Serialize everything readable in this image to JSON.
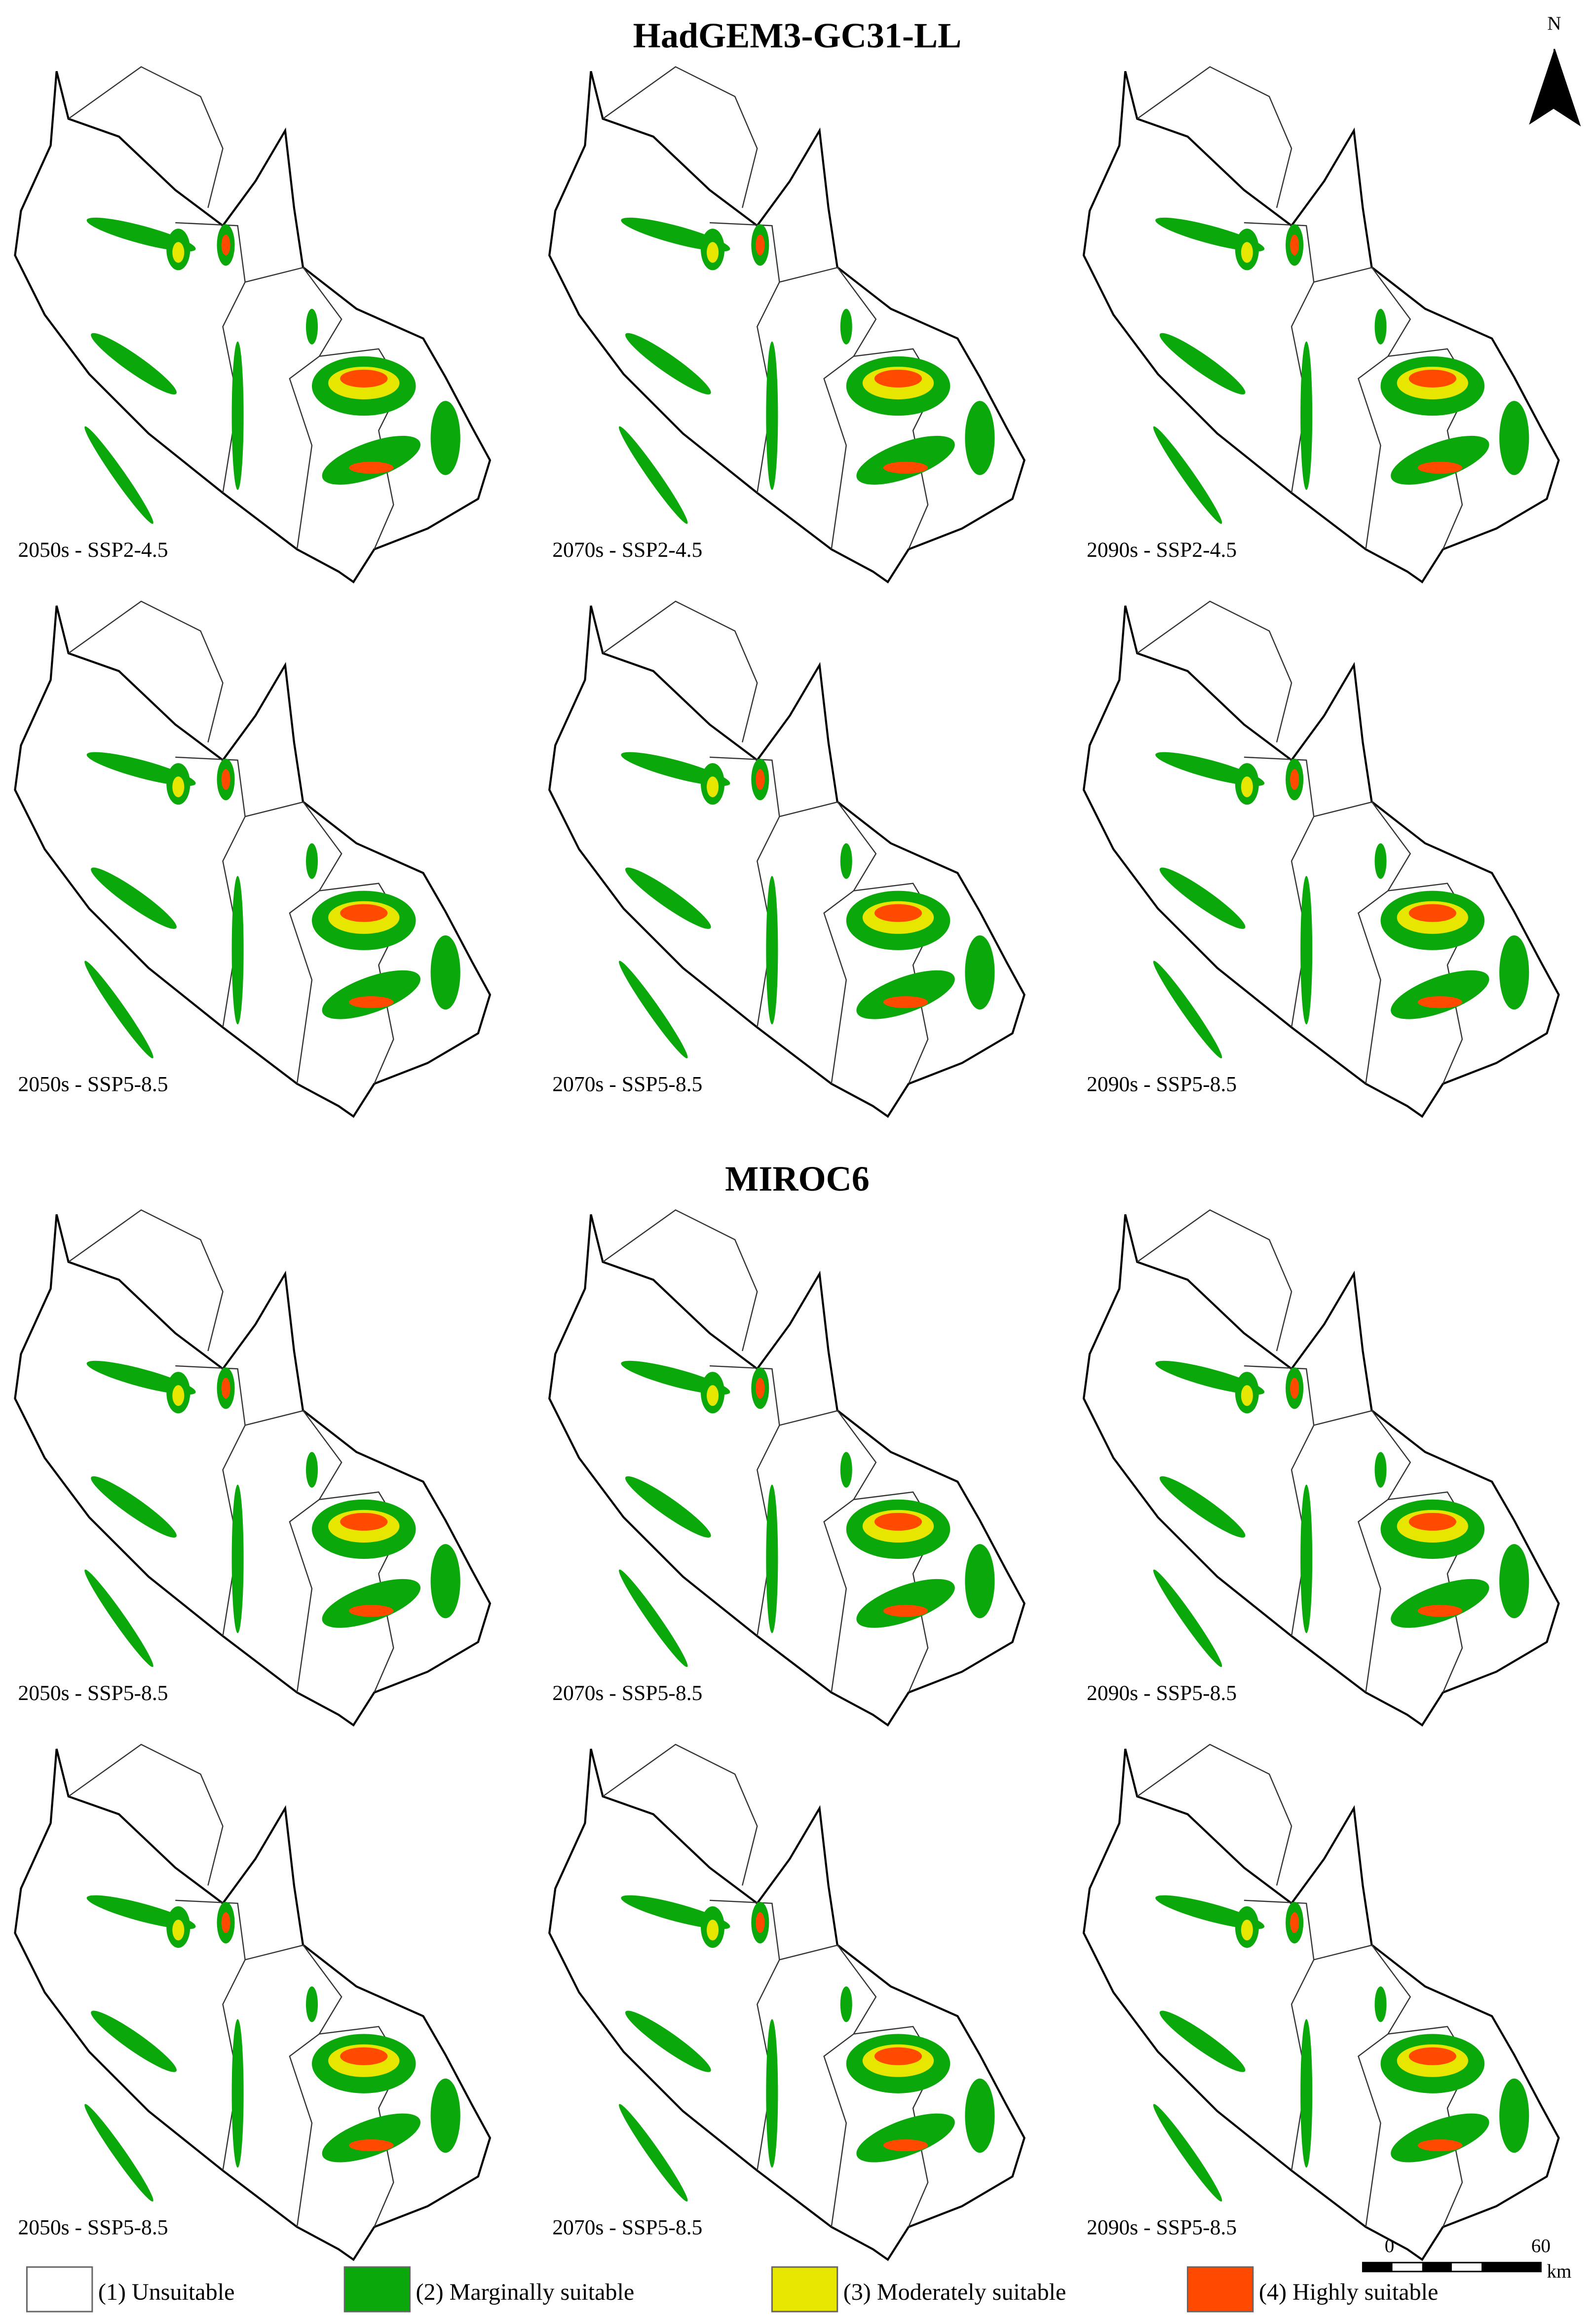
{
  "sections": [
    {
      "title": "HadGEM3-GC31-LL",
      "panels": [
        "2050s - SSP2-4.5",
        "2070s - SSP2-4.5",
        "2090s - SSP2-4.5",
        "2050s - SSP5-8.5",
        "2070s - SSP5-8.5",
        "2090s - SSP5-8.5"
      ]
    },
    {
      "title": "MIROC6",
      "panels": [
        "2050s - SSP5-8.5",
        "2070s - SSP5-8.5",
        "2090s - SSP5-8.5",
        "2050s - SSP5-8.5",
        "2070s - SSP5-8.5",
        "2090s - SSP5-8.5"
      ]
    }
  ],
  "north_arrow": "N",
  "scale_bar": {
    "ticks": [
      "0",
      "60"
    ],
    "unit": "km"
  },
  "legend": [
    {
      "label": "(1) Unsuitable",
      "color": "#ffffff"
    },
    {
      "label": "(2) Marginally suitable",
      "color": "#0aa80a"
    },
    {
      "label": "(3) Moderately suitable",
      "color": "#e6e600"
    },
    {
      "label": "(4) Highly suitable",
      "color": "#ff4a00"
    }
  ]
}
